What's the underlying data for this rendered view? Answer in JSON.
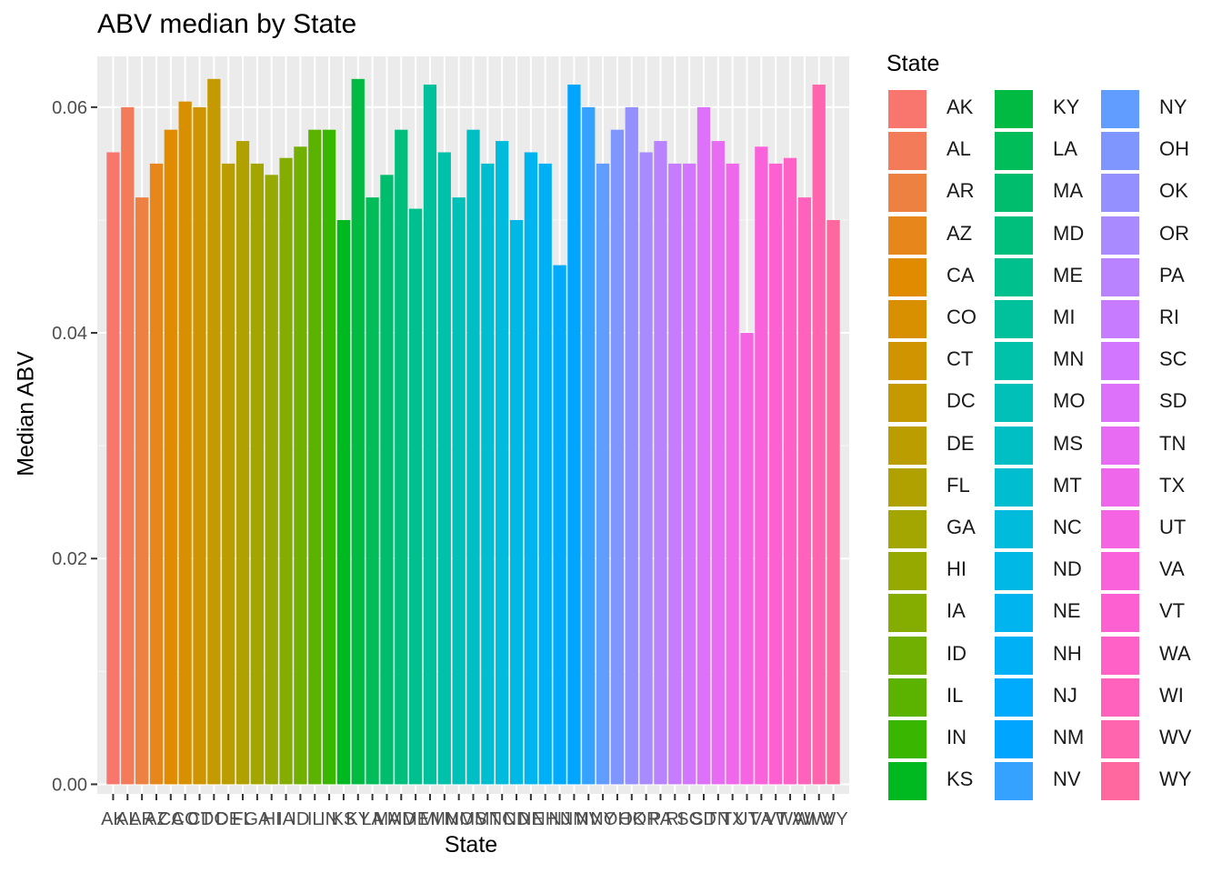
{
  "chart_data": {
    "type": "bar",
    "title": "ABV median by State",
    "xlabel": "State",
    "ylabel": "Median ABV",
    "ylim": [
      -0.00085,
      0.0645
    ],
    "y_ticks": [
      0.0,
      0.02,
      0.04,
      0.06
    ],
    "y_tick_labels": [
      "0.00",
      "0.02",
      "0.04",
      "0.06"
    ],
    "grid": true,
    "legend_title": "State",
    "legend_position": "right",
    "categories": [
      "AK",
      "AL",
      "AR",
      "AZ",
      "CA",
      "CO",
      "CT",
      "DC",
      "DE",
      "FL",
      "GA",
      "HI",
      "IA",
      "ID",
      "IL",
      "IN",
      "KS",
      "KY",
      "LA",
      "MA",
      "MD",
      "ME",
      "MI",
      "MN",
      "MO",
      "MS",
      "MT",
      "NC",
      "ND",
      "NE",
      "NH",
      "NJ",
      "NM",
      "NV",
      "NY",
      "OH",
      "OK",
      "OR",
      "PA",
      "RI",
      "SC",
      "SD",
      "TN",
      "TX",
      "UT",
      "VA",
      "VT",
      "WA",
      "WI",
      "WV",
      "WY"
    ],
    "values": [
      0.056,
      0.06,
      0.052,
      0.055,
      0.058,
      0.0605,
      0.06,
      0.0625,
      0.055,
      0.057,
      0.055,
      0.054,
      0.0555,
      0.0565,
      0.058,
      0.058,
      0.05,
      0.0625,
      0.052,
      0.054,
      0.058,
      0.051,
      0.062,
      0.056,
      0.052,
      0.058,
      0.055,
      0.057,
      0.05,
      0.056,
      0.055,
      0.046,
      0.062,
      0.06,
      0.055,
      0.058,
      0.06,
      0.056,
      0.057,
      0.055,
      0.055,
      0.06,
      0.057,
      0.055,
      0.04,
      0.0565,
      0.055,
      0.0555,
      0.052,
      0.062,
      0.05
    ],
    "colors": [
      "#F8766D",
      "#F37B59",
      "#ED8141",
      "#E7861B",
      "#E08B00",
      "#D89000",
      "#CF9400",
      "#C59900",
      "#BB9D00",
      "#B0A100",
      "#A3A500",
      "#95A900",
      "#85AD00",
      "#72B000",
      "#5BB300",
      "#39B600",
      "#00B81F",
      "#00BA42",
      "#00BC59",
      "#00BD6D",
      "#00BF7D",
      "#00C08D",
      "#00C19C",
      "#00C1AA",
      "#00C0B8",
      "#00BFC4",
      "#00BDD0",
      "#00BBDB",
      "#00B8E5",
      "#00B4EF",
      "#00B0F6",
      "#00ABFD",
      "#00A5FF",
      "#35A2FF",
      "#619CFF",
      "#7F96FF",
      "#9590FF",
      "#A98AFF",
      "#B983FF",
      "#C77CFF",
      "#D376FF",
      "#DE71F9",
      "#E76BF3",
      "#EF67EB",
      "#F564E3",
      "#FA62DB",
      "#FD61D1",
      "#FF61C7",
      "#FF62BC",
      "#FF65AE",
      "#FF689F"
    ]
  }
}
